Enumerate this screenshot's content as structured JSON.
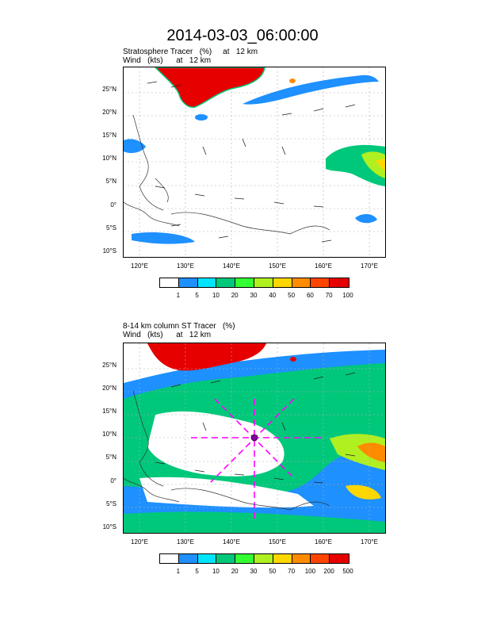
{
  "title": "2014-03-03_06:00:00",
  "panel1": {
    "title_line1": "Stratosphere Tracer   (%)     at   12 km",
    "title_line2": "Wind   (kts)      at   12 km",
    "lat_labels": [
      "25°N",
      "20°N",
      "15°N",
      "10°N",
      "5°N",
      "0°",
      "5°S",
      "10°S"
    ],
    "lon_labels": [
      "120°E",
      "130°E",
      "140°E",
      "150°E",
      "160°E",
      "170°E"
    ],
    "colorbar": {
      "colors": [
        "#ffffff",
        "#1e90ff",
        "#00e5ff",
        "#00c87a",
        "#33ff33",
        "#b0f020",
        "#ffd700",
        "#ff8c00",
        "#ff4500",
        "#e60000"
      ],
      "labels": [
        "1",
        "5",
        "10",
        "20",
        "30",
        "40",
        "50",
        "60",
        "70",
        "100"
      ]
    }
  },
  "panel2": {
    "title_line1": "8-14 km column ST Tracer   (%)",
    "title_line2": "Wind   (kts)      at   12 km",
    "lat_labels": [
      "25°N",
      "20°N",
      "15°N",
      "10°N",
      "5°N",
      "0°",
      "5°S",
      "10°S"
    ],
    "lon_labels": [
      "120°E",
      "130°E",
      "140°E",
      "150°E",
      "160°E",
      "170°E"
    ],
    "colorbar": {
      "colors": [
        "#ffffff",
        "#1e90ff",
        "#00e5ff",
        "#00c87a",
        "#33ff33",
        "#b0f020",
        "#ffd700",
        "#ff8c00",
        "#ff4500",
        "#e60000"
      ],
      "labels": [
        "1",
        "5",
        "10",
        "20",
        "30",
        "50",
        "70",
        "100",
        "200",
        "500"
      ]
    }
  }
}
